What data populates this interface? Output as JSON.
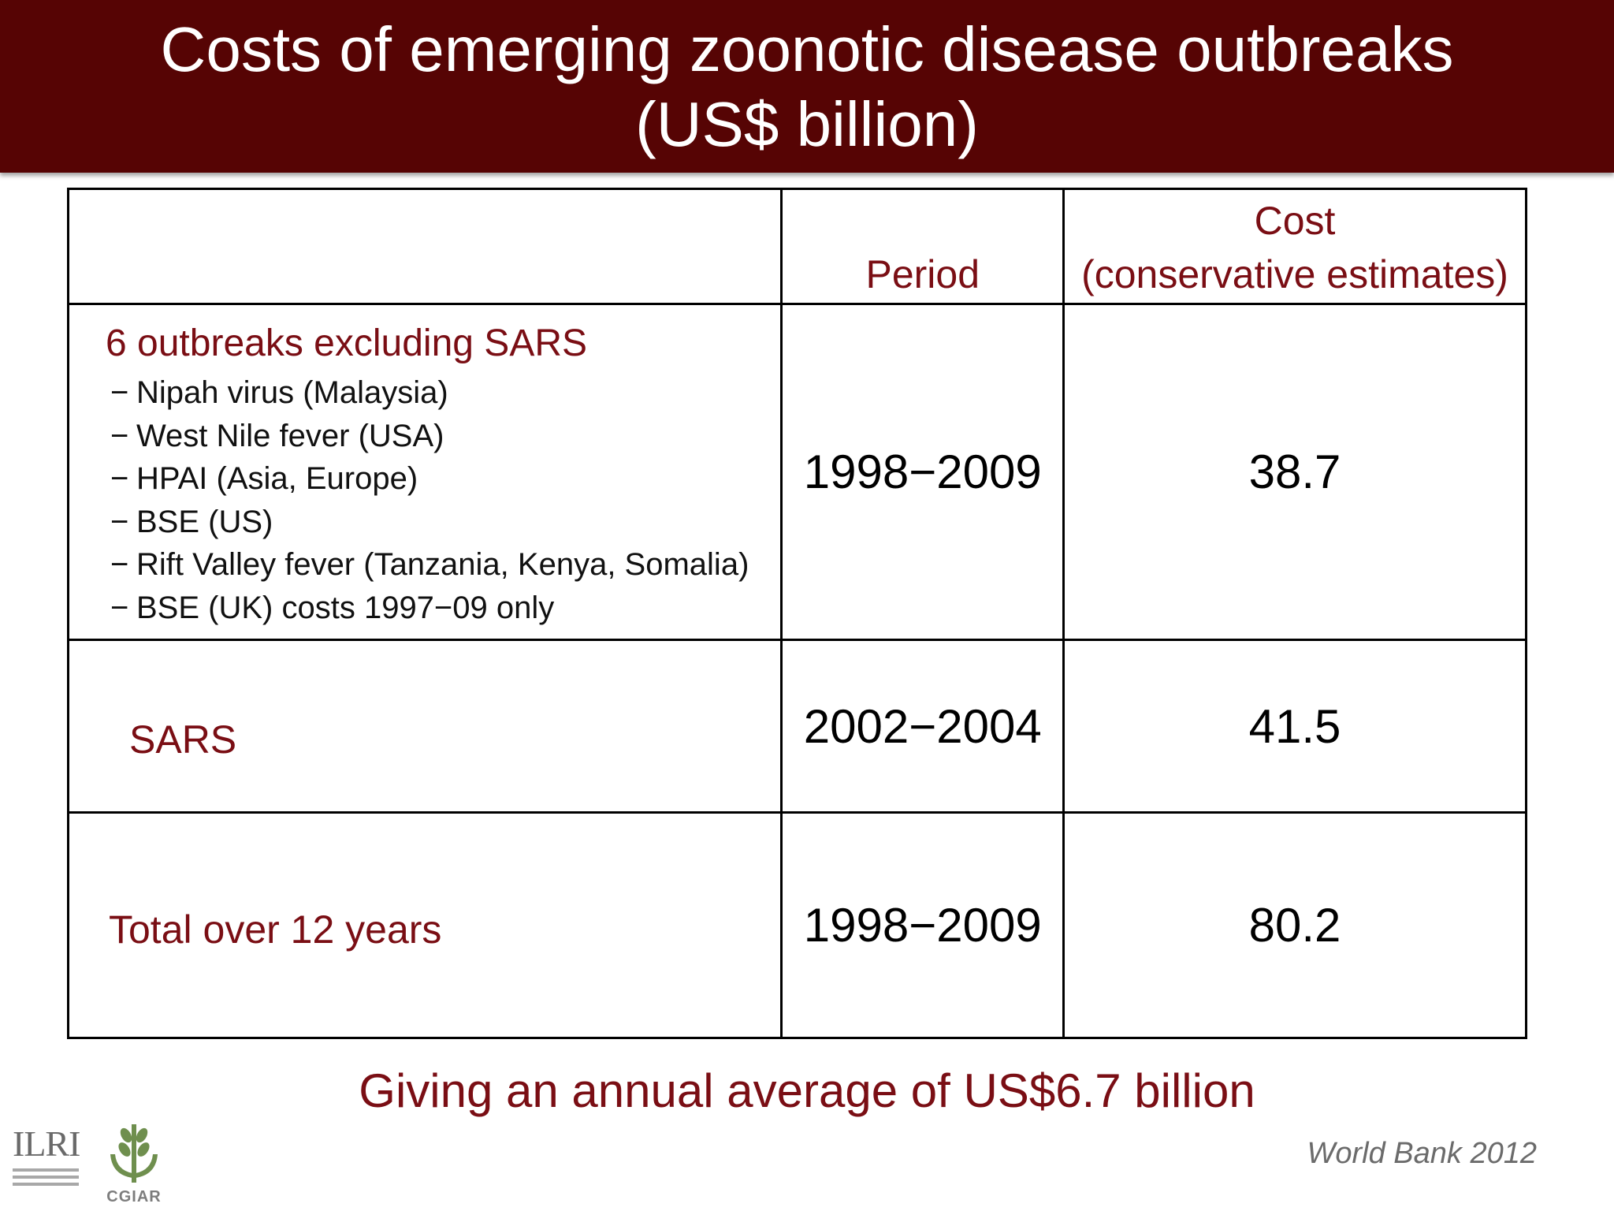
{
  "slide": {
    "title_line1": "Costs of emerging zoonotic disease outbreaks",
    "title_line2": "(US$ billion)"
  },
  "table": {
    "headers": {
      "outbreak": "",
      "period": "Period",
      "cost_line1": "Cost",
      "cost_line2": "(conservative estimates)"
    },
    "rows": [
      {
        "label": "6 outbreaks excluding SARS",
        "items": [
          "Nipah virus (Malaysia)",
          "West Nile fever (USA)",
          "HPAI (Asia, Europe)",
          "BSE (US)",
          "Rift Valley fever (Tanzania, Kenya, Somalia)",
          "BSE (UK) costs 1997−09 only"
        ],
        "period": "1998−2009",
        "cost": "38.7"
      },
      {
        "label": "SARS",
        "period": "2002−2004",
        "cost": "41.5"
      },
      {
        "label": "Total over 12 years",
        "period": "1998−2009",
        "cost": "80.2"
      }
    ],
    "item_marker": "−"
  },
  "footer": {
    "summary": "Giving an annual average of US$6.7 billion",
    "source": "World Bank 2012"
  },
  "logos": {
    "ilri": "ILRI",
    "cgiar": "CGIAR"
  },
  "colors": {
    "title_bar": "#560404",
    "accent_text": "#7a0e14"
  }
}
